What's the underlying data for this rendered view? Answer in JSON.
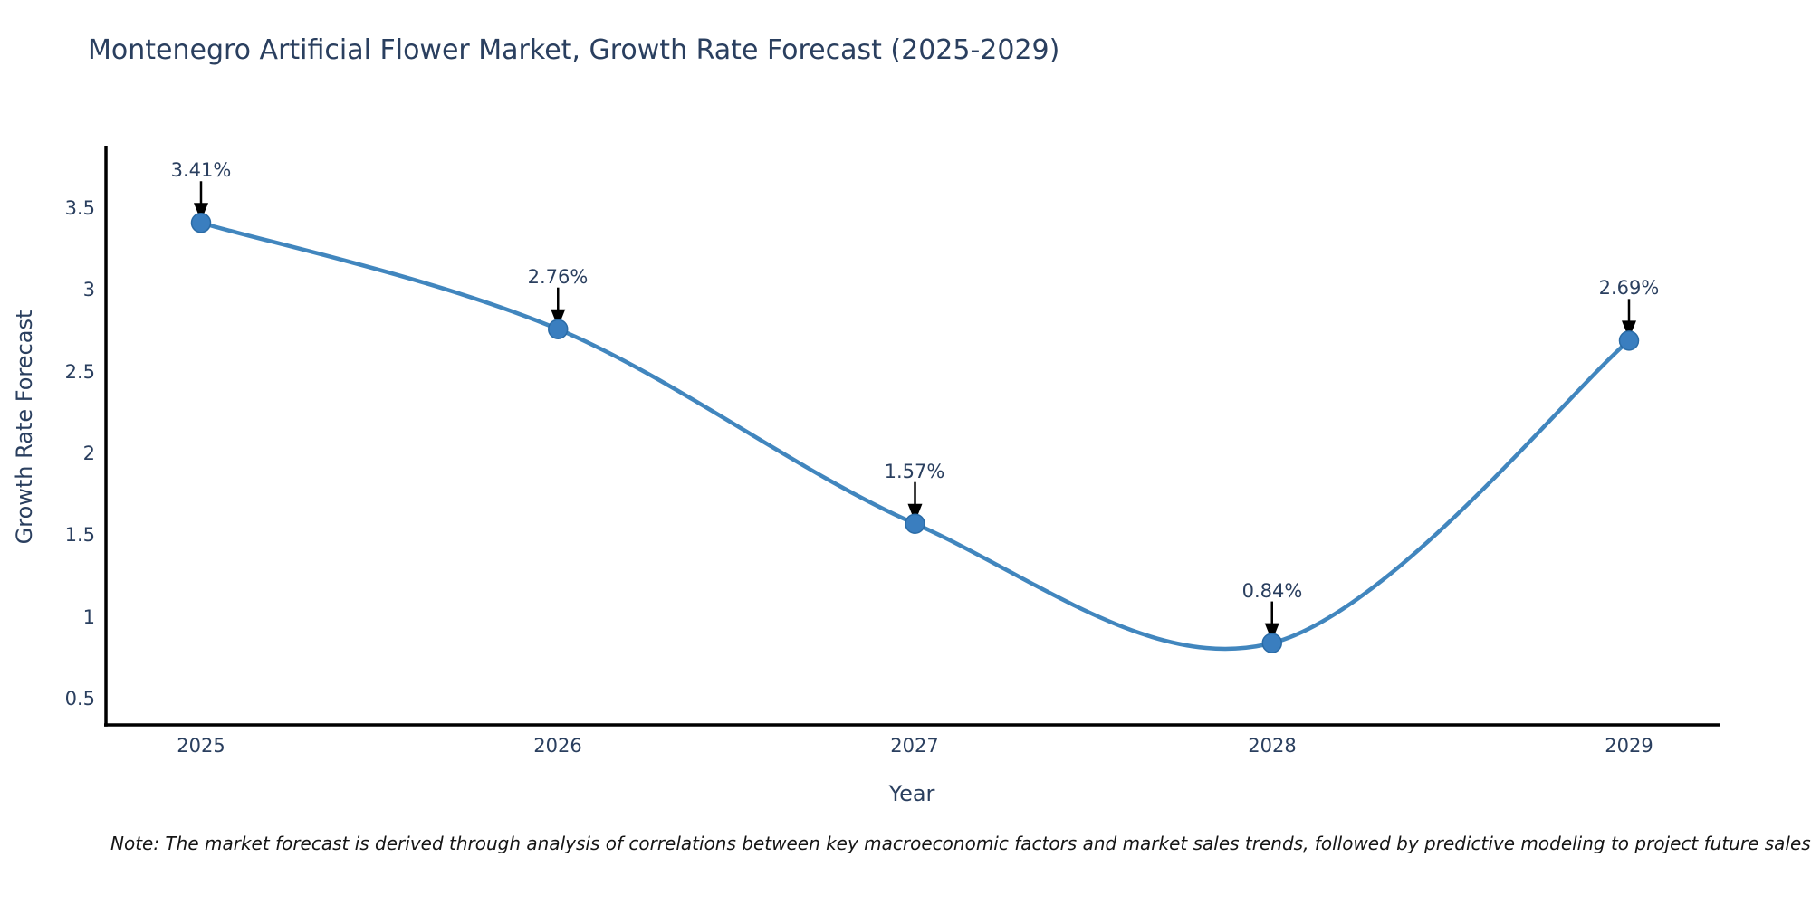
{
  "chart_data": {
    "type": "line",
    "title": "Montenegro Artificial Flower Market, Growth Rate Forecast (2025-2029)",
    "xlabel": "Year",
    "ylabel": "Growth Rate Forecast",
    "categories": [
      "2025",
      "2026",
      "2027",
      "2028",
      "2029"
    ],
    "values": [
      3.41,
      2.76,
      1.57,
      0.84,
      2.69
    ],
    "annotations": [
      "3.41%",
      "2.76%",
      "1.57%",
      "0.84%",
      "2.69%"
    ],
    "ytick_labels": [
      "3.5",
      "3",
      "2.5",
      "2",
      "1.5",
      "1",
      "0.5"
    ],
    "ytick_values": [
      3.5,
      3.0,
      2.5,
      2.0,
      1.5,
      1.0,
      0.5
    ],
    "ylim": [
      0.34,
      3.89
    ],
    "line_shape": "spline",
    "grid": false,
    "legend_position": "none",
    "colors": {
      "line": "#4186be",
      "marker": "#3a7ebf",
      "marker_edge": "#2a6ba6",
      "axis": "#000000",
      "arrow": "#000000",
      "text": "#2a3f5f"
    },
    "note": "Note: The market forecast is derived through analysis of correlations between key macroeconomic factors and market sales trends, followed by predictive modeling to project future sales"
  }
}
